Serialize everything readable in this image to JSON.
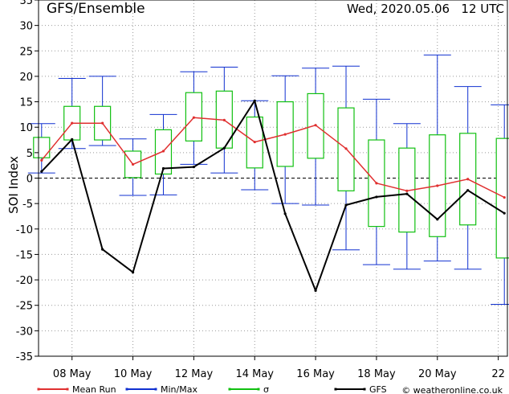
{
  "header": {
    "title": "GFS/Ensemble",
    "timestamp": "Wed, 2020.05.06   12 UTC"
  },
  "footer": {
    "credit": "© weatheronline.co.uk"
  },
  "chart_data": {
    "type": "line",
    "title": "GFS/Ensemble",
    "ylabel": "SOI Index",
    "xlabel": "",
    "ylim": [
      -35,
      35
    ],
    "xlim": [
      6.9,
      22.3
    ],
    "yticks": [
      -35,
      -30,
      -25,
      -20,
      -15,
      -10,
      -5,
      0,
      5,
      10,
      15,
      20,
      25,
      30,
      35
    ],
    "x_ticks": [
      {
        "x": 8,
        "label": "08  May"
      },
      {
        "x": 10,
        "label": "10  May"
      },
      {
        "x": 12,
        "label": "12  May"
      },
      {
        "x": 14,
        "label": "14  May"
      },
      {
        "x": 16,
        "label": "16  May"
      },
      {
        "x": 18,
        "label": "18  May"
      },
      {
        "x": 20,
        "label": "20  May"
      },
      {
        "x": 22,
        "label": "22"
      }
    ],
    "grid": true,
    "legend_position": "bottom",
    "colors": {
      "mean": "#e03030",
      "minmax": "#1030d0",
      "sigma": "#10c010",
      "gfs": "#000000",
      "grid": "#999999",
      "zero_line": "#000000"
    },
    "series": [
      {
        "name": "Mean Run",
        "x": [
          7,
          8,
          9,
          10,
          11,
          12,
          13,
          14,
          15,
          16,
          17,
          18,
          19,
          20,
          21,
          22.2
        ],
        "values": [
          3.5,
          10.8,
          10.8,
          2.7,
          5.3,
          11.9,
          11.4,
          7.1,
          8.6,
          10.4,
          5.8,
          -1,
          -2.5,
          -1.5,
          -0.2,
          -3.8
        ]
      },
      {
        "name": "GFS",
        "x": [
          7,
          8,
          9,
          10,
          11,
          12,
          13,
          14,
          15,
          16,
          17,
          18,
          19,
          20,
          21,
          22.2
        ],
        "values": [
          1.3,
          7.6,
          -14,
          -18.5,
          1.9,
          2.2,
          5.9,
          15.2,
          -7,
          -22.1,
          -5.3,
          -3.7,
          -3.1,
          -8.1,
          -2.4,
          -6.9
        ]
      }
    ],
    "boxes": [
      {
        "x": 7,
        "min": 1,
        "max": 10.7,
        "low": 4,
        "high": 8
      },
      {
        "x": 8,
        "min": 5.8,
        "max": 19.6,
        "low": 7.5,
        "high": 14.1
      },
      {
        "x": 9,
        "min": 6.4,
        "max": 20,
        "low": 7.5,
        "high": 14.1
      },
      {
        "x": 10,
        "min": -3.4,
        "max": 7.7,
        "low": 0.1,
        "high": 5.3
      },
      {
        "x": 11,
        "min": -3.3,
        "max": 12.5,
        "low": 0.8,
        "high": 9.5
      },
      {
        "x": 12,
        "min": 2.7,
        "max": 20.9,
        "low": 7.3,
        "high": 16.8
      },
      {
        "x": 13,
        "min": 1,
        "max": 21.8,
        "low": 5.9,
        "high": 17.1
      },
      {
        "x": 14,
        "min": -2.3,
        "max": 15.2,
        "low": 2,
        "high": 12
      },
      {
        "x": 15,
        "min": -5,
        "max": 20.1,
        "low": 2.3,
        "high": 15
      },
      {
        "x": 16,
        "min": -5.3,
        "max": 21.6,
        "low": 3.9,
        "high": 16.6
      },
      {
        "x": 17,
        "min": -14.1,
        "max": 22,
        "low": -2.5,
        "high": 13.8
      },
      {
        "x": 18,
        "min": -17,
        "max": 15.5,
        "low": -9.5,
        "high": 7.5
      },
      {
        "x": 19,
        "min": -17.9,
        "max": 10.7,
        "low": -10.6,
        "high": 5.9
      },
      {
        "x": 20,
        "min": -16.3,
        "max": 24.2,
        "low": -11.5,
        "high": 8.5
      },
      {
        "x": 21,
        "min": -17.9,
        "max": 18,
        "low": -9.2,
        "high": 8.8
      },
      {
        "x": 22.2,
        "min": -24.8,
        "max": 14.4,
        "low": -15.7,
        "high": 7.8
      }
    ],
    "legend": [
      {
        "key": "mean",
        "label": "Mean Run"
      },
      {
        "key": "minmax",
        "label": "Min/Max"
      },
      {
        "key": "sigma",
        "label": "σ"
      },
      {
        "key": "gfs",
        "label": "GFS"
      }
    ]
  }
}
